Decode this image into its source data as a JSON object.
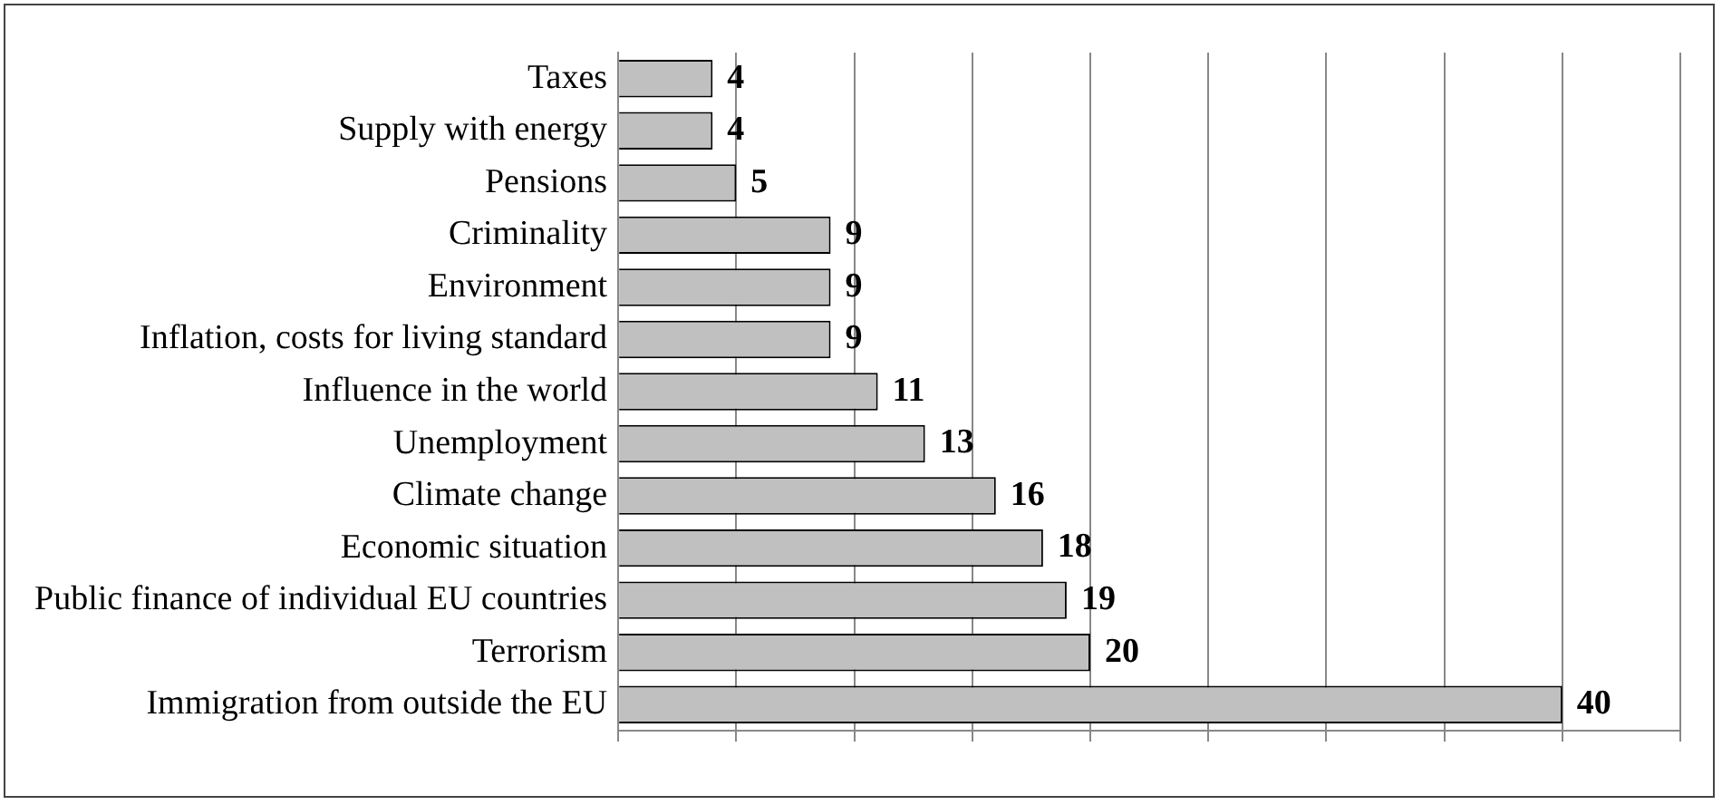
{
  "chart_data": {
    "type": "bar",
    "orientation": "horizontal",
    "categories": [
      "Taxes",
      "Supply with energy",
      "Pensions",
      "Criminality",
      "Environment",
      "Inflation, costs for living standard",
      "Influence in the world",
      "Unemployment",
      "Climate change",
      "Economic situation",
      "Public finance of individual EU countries",
      "Terrorism",
      "Immigration from outside the EU"
    ],
    "values": [
      4,
      4,
      5,
      9,
      9,
      9,
      11,
      13,
      16,
      18,
      19,
      20,
      40
    ],
    "color": "#c0c0c0",
    "grid": "x",
    "tick_labels": "y",
    "data_labels": true,
    "legend": false
  }
}
